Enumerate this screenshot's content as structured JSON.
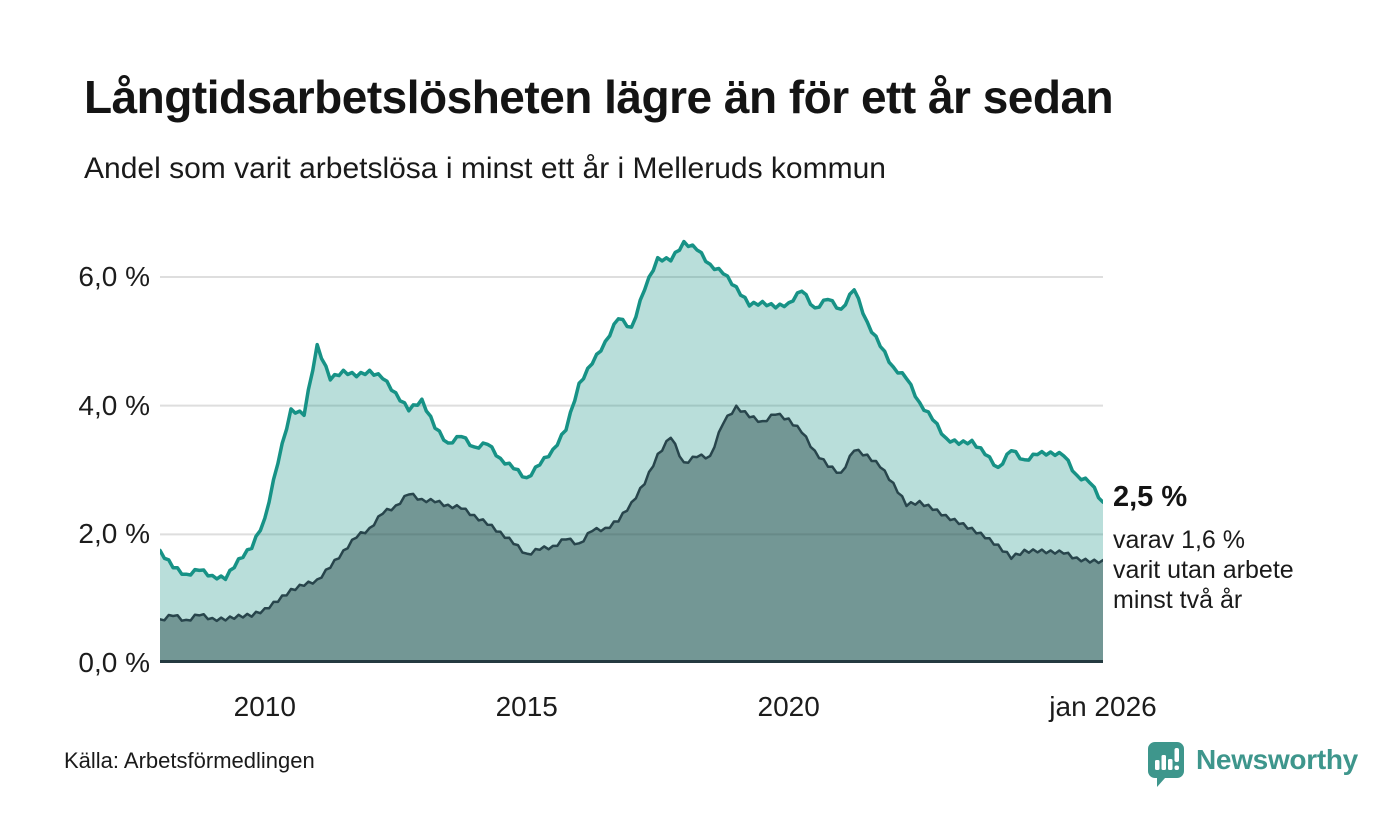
{
  "header": {
    "title": "Långtidsarbetslösheten lägre än för ett år sedan",
    "subtitle": "Andel som varit arbetslösa i minst ett år i Melleruds kommun"
  },
  "chart_data": {
    "type": "area",
    "title": "Långtidsarbetslösheten lägre än för ett år sedan",
    "subtitle": "Andel som varit arbetslösa i minst ett år i Melleruds kommun",
    "unit": "%",
    "xlim": [
      2008,
      2026
    ],
    "ylim": [
      0,
      6.8
    ],
    "grid": true,
    "x_start": 2008,
    "x_step": 0.25,
    "x_ticks": [
      {
        "year": 2010,
        "label": "2010"
      },
      {
        "year": 2015,
        "label": "2015"
      },
      {
        "year": 2020,
        "label": "2020"
      },
      {
        "year": 2026,
        "label": "jan 2026"
      }
    ],
    "y_ticks": [
      {
        "value": 0,
        "label": "0,0 %"
      },
      {
        "value": 2,
        "label": "2,0 %"
      },
      {
        "value": 4,
        "label": "4,0 %"
      },
      {
        "value": 6,
        "label": "6,0 %"
      }
    ],
    "series": [
      {
        "name": "Andel som varit arbetslösa i minst ett år",
        "line_color": "#179286",
        "fill_color": "rgba(23,146,134,0.30)",
        "line_width": 3.5,
        "last_value_label": "2,5 %",
        "values": [
          1.75,
          1.48,
          1.38,
          1.44,
          1.36,
          1.3,
          1.62,
          1.78,
          2.25,
          3.1,
          3.95,
          3.85,
          4.95,
          4.4,
          4.55,
          4.45,
          4.55,
          4.42,
          4.2,
          3.92,
          4.1,
          3.65,
          3.42,
          3.52,
          3.36,
          3.4,
          3.18,
          3.02,
          2.88,
          3.08,
          3.32,
          3.62,
          4.35,
          4.65,
          5.0,
          5.35,
          5.22,
          5.8,
          6.3,
          6.25,
          6.55,
          6.42,
          6.2,
          6.05,
          5.85,
          5.55,
          5.62,
          5.52,
          5.6,
          5.78,
          5.52,
          5.65,
          5.5,
          5.8,
          5.3,
          4.92,
          4.6,
          4.42,
          4.05,
          3.78,
          3.5,
          3.4,
          3.46,
          3.24,
          3.04,
          3.3,
          3.16,
          3.24,
          3.28,
          3.22,
          2.92,
          2.8,
          2.5
        ]
      },
      {
        "name": "varav varit utan arbete minst två år",
        "line_color": "#28454c",
        "fill_color": "rgba(31,64,64,0.45)",
        "line_width": 2.5,
        "last_value_label": "1,6 %",
        "values": [
          0.68,
          0.73,
          0.67,
          0.74,
          0.7,
          0.66,
          0.75,
          0.72,
          0.85,
          0.95,
          1.15,
          1.2,
          1.3,
          1.48,
          1.75,
          1.95,
          2.1,
          2.32,
          2.45,
          2.62,
          2.55,
          2.5,
          2.46,
          2.4,
          2.3,
          2.15,
          2.04,
          1.85,
          1.7,
          1.76,
          1.82,
          1.92,
          1.86,
          2.05,
          2.1,
          2.2,
          2.5,
          2.78,
          3.25,
          3.5,
          3.12,
          3.2,
          3.22,
          3.72,
          4.0,
          3.82,
          3.76,
          3.86,
          3.8,
          3.58,
          3.3,
          3.05,
          2.96,
          3.3,
          3.24,
          3.04,
          2.8,
          2.44,
          2.52,
          2.38,
          2.3,
          2.16,
          2.1,
          1.94,
          1.84,
          1.62,
          1.76,
          1.72,
          1.75,
          1.7,
          1.64,
          1.56,
          1.6
        ]
      }
    ],
    "annotation": {
      "value_label": "2,5 %",
      "lines": [
        "varav 1,6 %",
        "varit utan arbete",
        "minst två år"
      ]
    },
    "colors": {
      "gridline": "#dedede",
      "baseline": "#243a40",
      "text": "#1c1c1c"
    },
    "legend_position": "none"
  },
  "footer": {
    "source": "Källa: Arbetsförmedlingen",
    "brand": "Newsworthy",
    "brand_color": "#3e968c"
  }
}
